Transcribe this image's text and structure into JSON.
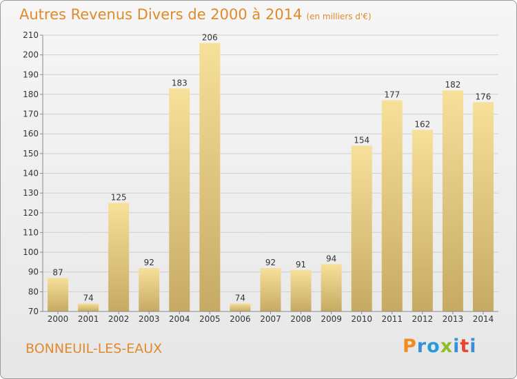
{
  "title": "Autres Revenus Divers de 2000 à 2014",
  "subtitle": "(en milliers d'€)",
  "place": "BONNEUIL-LES-EAUX",
  "logo": {
    "p": "P",
    "r": "r",
    "o": "o",
    "x": "x",
    "i": "i",
    "t": "t",
    "i2": "i"
  },
  "colors": {
    "bar_light": "#f7e09a",
    "bar_dark": "#c6aa63",
    "accent": "#e08a2b"
  },
  "chart_data": {
    "type": "bar",
    "title": "Autres Revenus Divers de 2000 à 2014",
    "subtitle": "(en milliers d'€)",
    "xlabel": "",
    "ylabel": "",
    "categories": [
      "2000",
      "2001",
      "2002",
      "2003",
      "2004",
      "2005",
      "2006",
      "2007",
      "2008",
      "2009",
      "2010",
      "2011",
      "2012",
      "2013",
      "2014"
    ],
    "values": [
      87,
      74,
      125,
      92,
      183,
      206,
      74,
      92,
      91,
      94,
      154,
      177,
      162,
      182,
      176
    ],
    "ylim": [
      70,
      210
    ],
    "yticks": [
      70,
      80,
      90,
      100,
      110,
      120,
      130,
      140,
      150,
      160,
      170,
      180,
      190,
      200,
      210
    ],
    "grid": true,
    "legend": "none"
  }
}
